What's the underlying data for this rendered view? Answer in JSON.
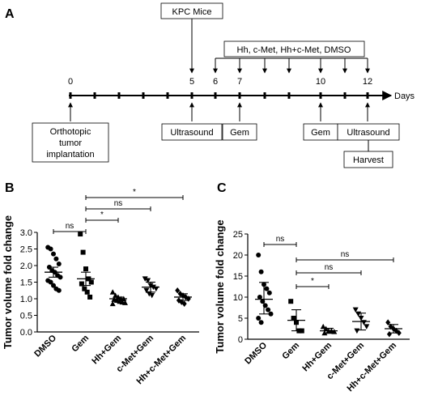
{
  "panel_a": {
    "letter": "A",
    "top_box": "KPC Mice",
    "treatment_box": "Hh, c-Met, Hh+c-Met, DMSO",
    "axis_unit": "Days",
    "day_labels": [
      "0",
      "5",
      "6",
      "7",
      "10",
      "12"
    ],
    "boxes": {
      "implant": [
        "Orthotopic",
        "tumor",
        "implantation"
      ],
      "ultrasound1": "Ultrasound",
      "gem1": "Gem",
      "gem2": "Gem",
      "ultrasound2": "Ultrasound",
      "harvest": "Harvest"
    }
  },
  "chart_data": [
    {
      "panel": "B",
      "type": "scatter",
      "ylabel": "Tumor volume fold change",
      "ylim": [
        0.0,
        3.0
      ],
      "yticks": [
        "0.0",
        "0.5",
        "1.0",
        "1.5",
        "2.0",
        "2.5",
        "3.0"
      ],
      "categories": [
        "DMSO",
        "Gem",
        "Hh+Gem",
        "c-Met+Gem",
        "Hh+c-Met+Gem"
      ],
      "markers": [
        "circle",
        "square",
        "triangle-up",
        "triangle-down",
        "diamond"
      ],
      "points": [
        [
          2.55,
          2.5,
          2.35,
          2.2,
          2.05,
          1.95,
          1.85,
          1.8,
          1.7,
          1.65,
          1.55,
          1.5,
          1.4,
          1.3,
          1.25
        ],
        [
          2.95,
          2.4,
          1.9,
          1.6,
          1.5,
          1.45,
          1.3,
          1.2,
          1.05
        ],
        [
          1.2,
          1.1,
          1.05,
          1.0,
          1.0,
          0.98,
          0.95,
          0.92,
          0.9,
          0.88,
          0.85
        ],
        [
          1.6,
          1.55,
          1.4,
          1.35,
          1.3,
          1.25,
          1.15,
          1.1
        ],
        [
          1.25,
          1.15,
          1.1,
          1.05,
          1.0,
          0.95,
          0.9,
          0.85
        ]
      ],
      "mean": [
        1.8,
        1.6,
        1.0,
        1.35,
        1.05
      ],
      "error_low": [
        1.65,
        1.4,
        0.95,
        1.2,
        0.95
      ],
      "error_high": [
        1.95,
        1.8,
        1.05,
        1.5,
        1.15
      ],
      "comparisons": [
        {
          "from": 0,
          "to": 1,
          "label": "ns"
        },
        {
          "from": 1,
          "to": 2,
          "label": "*"
        },
        {
          "from": 1,
          "to": 3,
          "label": "ns"
        },
        {
          "from": 1,
          "to": 4,
          "label": "*"
        }
      ]
    },
    {
      "panel": "C",
      "type": "scatter",
      "ylabel": "Tumor volume fold change",
      "ylim": [
        0,
        25
      ],
      "yticks": [
        "0",
        "5",
        "10",
        "15",
        "20",
        "25"
      ],
      "categories": [
        "DMSO",
        "Gem",
        "Hh+Gem",
        "c-Met+Gem",
        "Hh+c-Met+Gem"
      ],
      "markers": [
        "circle",
        "square",
        "triangle-up",
        "triangle-down",
        "diamond"
      ],
      "points": [
        [
          20,
          16,
          13,
          12,
          11,
          10,
          9,
          8,
          7,
          6,
          5,
          4
        ],
        [
          9,
          5,
          4,
          2,
          2
        ],
        [
          3,
          2.5,
          2,
          2,
          1.8,
          1.5
        ],
        [
          7,
          6,
          5,
          4,
          3,
          2
        ],
        [
          4,
          3,
          2.5,
          2,
          1.5,
          1.2
        ]
      ],
      "mean": [
        9.5,
        4.5,
        2.0,
        4.2,
        2.5
      ],
      "error_low": [
        6.0,
        2.0,
        1.4,
        2.2,
        1.5
      ],
      "error_high": [
        13.5,
        7.0,
        2.6,
        6.2,
        3.5
      ],
      "comparisons": [
        {
          "from": 0,
          "to": 1,
          "label": "ns"
        },
        {
          "from": 1,
          "to": 2,
          "label": "*"
        },
        {
          "from": 1,
          "to": 3,
          "label": "ns"
        },
        {
          "from": 1,
          "to": 4,
          "label": "ns"
        }
      ]
    }
  ]
}
